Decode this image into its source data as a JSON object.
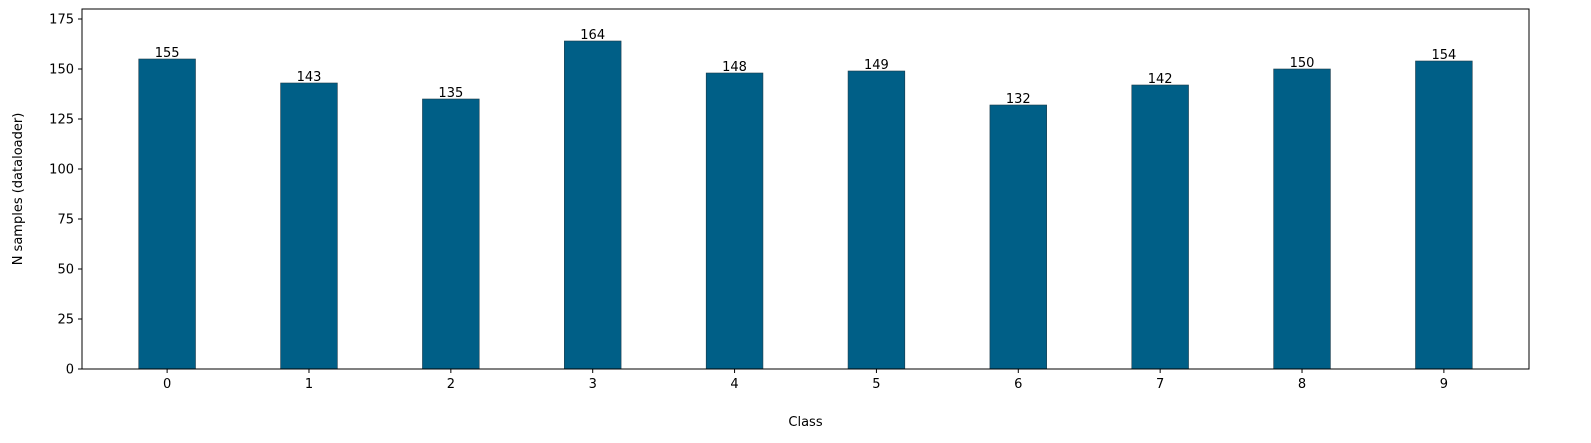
{
  "chart_data": {
    "type": "bar",
    "categories": [
      "0",
      "1",
      "2",
      "3",
      "4",
      "5",
      "6",
      "7",
      "8",
      "9"
    ],
    "values": [
      155,
      143,
      135,
      164,
      148,
      149,
      132,
      142,
      150,
      154
    ],
    "data_labels": [
      "155",
      "143",
      "135",
      "164",
      "148",
      "149",
      "132",
      "142",
      "150",
      "154"
    ],
    "title": "",
    "xlabel": "Class",
    "ylabel": "N samples (dataloader)",
    "ylim": [
      0,
      180
    ],
    "yticks": [
      0,
      25,
      50,
      75,
      100,
      125,
      150,
      175
    ],
    "ytick_labels": [
      "0",
      "25",
      "50",
      "75",
      "100",
      "125",
      "150",
      "175"
    ],
    "grid": false,
    "bar_color": "#005f87"
  }
}
